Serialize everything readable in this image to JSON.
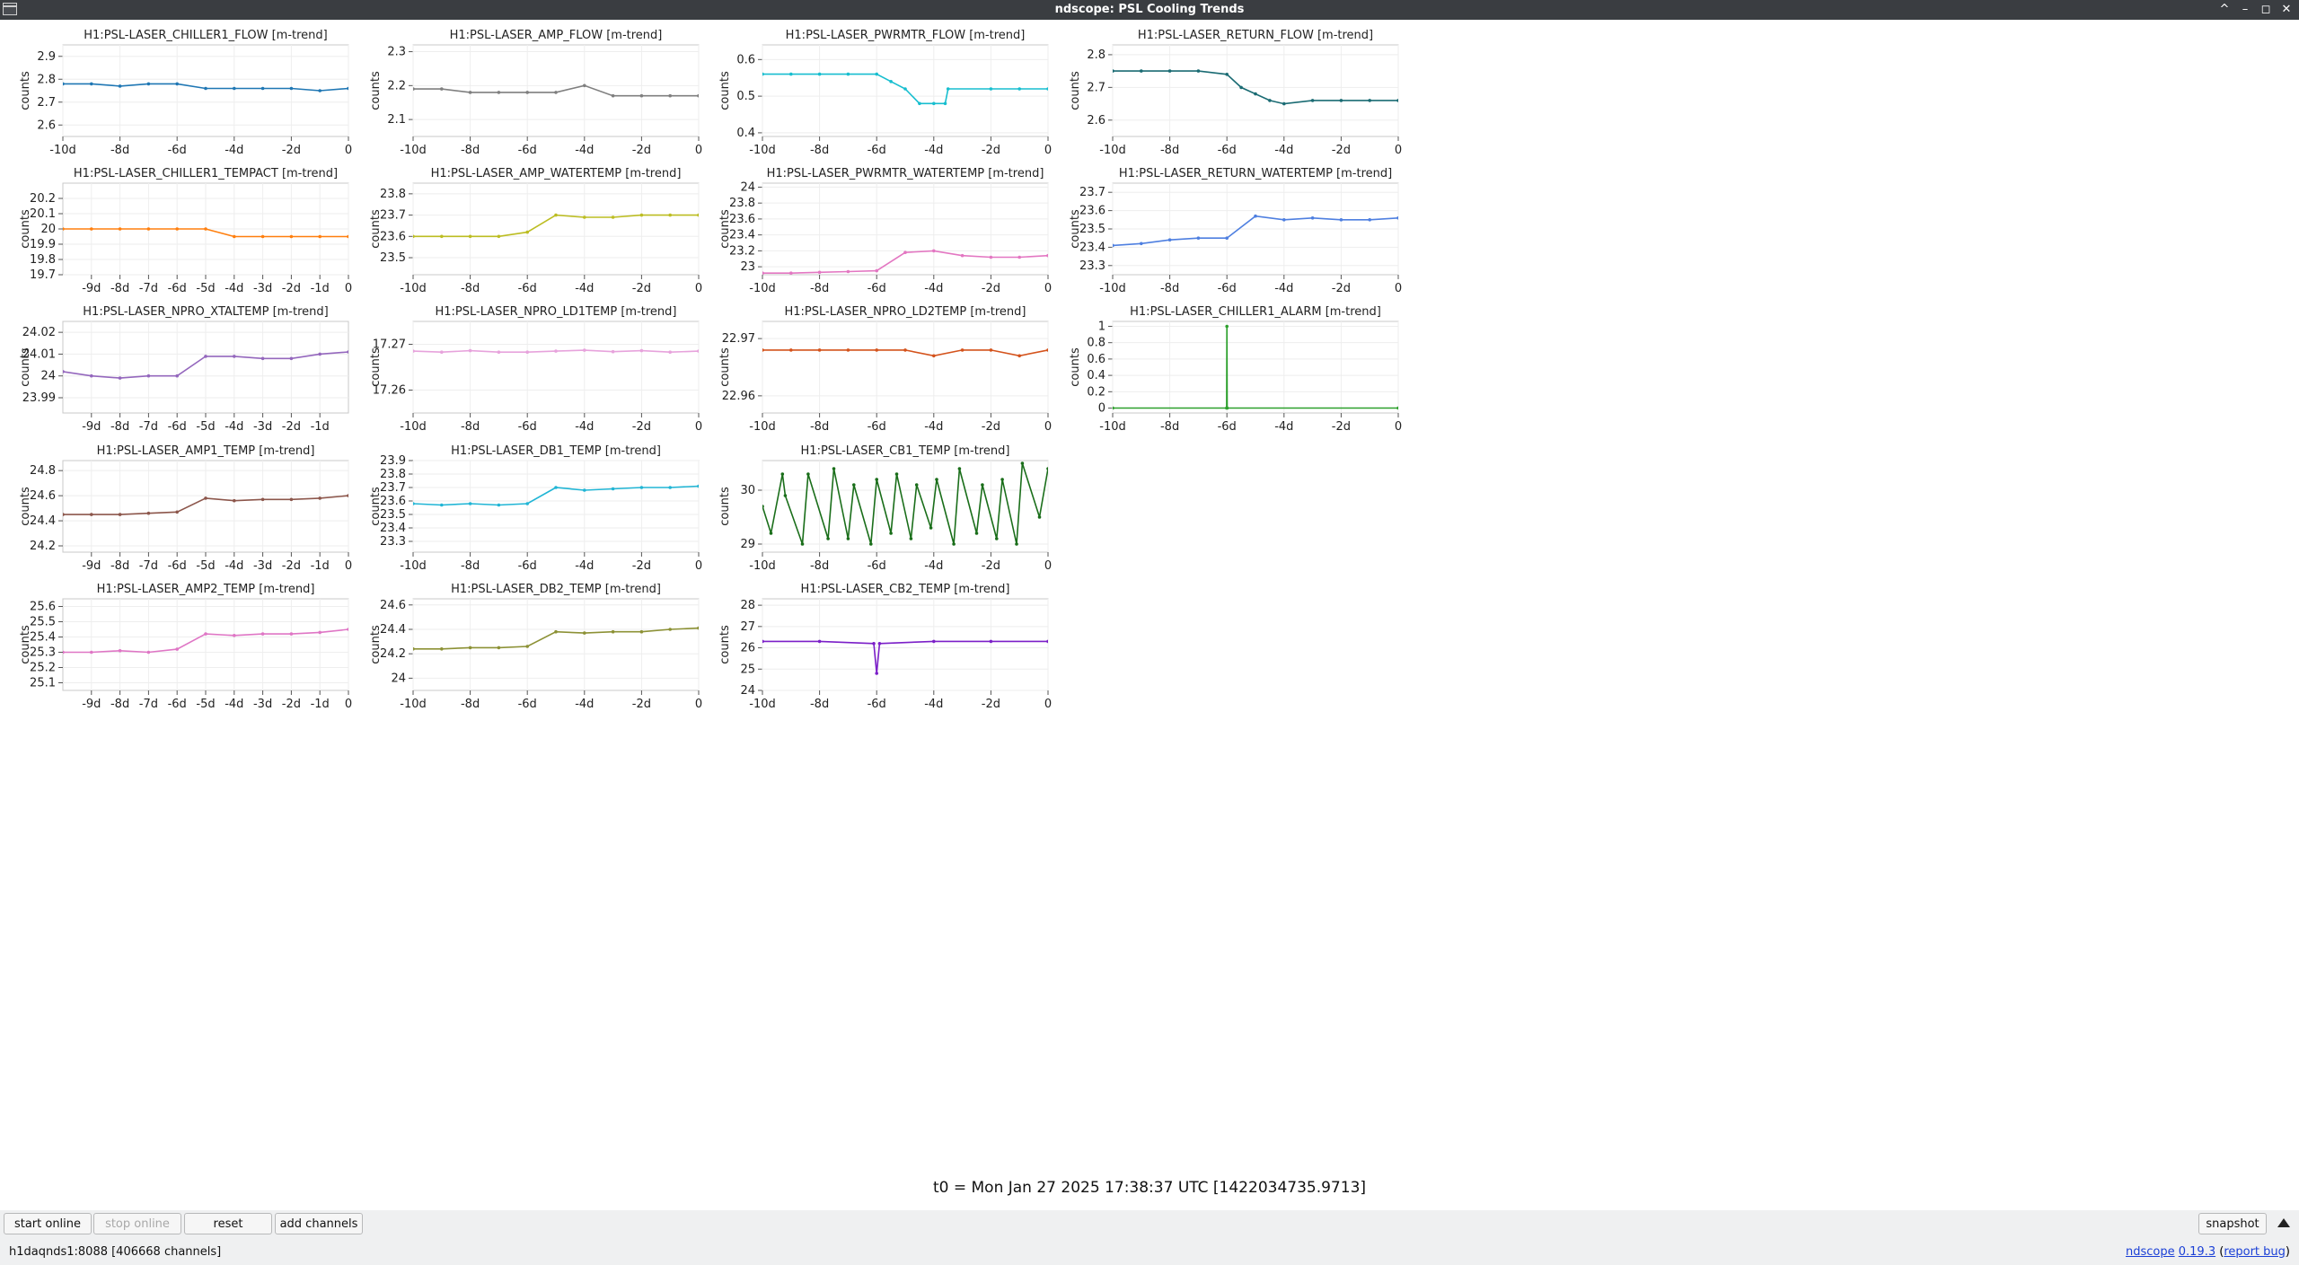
{
  "window": {
    "title": "ndscope: PSL Cooling Trends",
    "buttons": [
      "^",
      "–",
      "◻",
      "✕"
    ]
  },
  "footer": {
    "t0": "t0 = Mon Jan 27 2025 17:38:37 UTC [1422034735.9713]",
    "buttons": {
      "start_online": "start online",
      "stop_online": "stop online",
      "reset": "reset",
      "add_channels": "add channels",
      "snapshot": "snapshot"
    },
    "server": "h1daqnds1:8088  [406668 channels]",
    "version_link": "ndscope",
    "version": "0.19.3",
    "report_open": "(",
    "report_bug": "report bug",
    "report_close": ")"
  },
  "chart_data": [
    {
      "type": "line",
      "title": "H1:PSL-LASER_CHILLER1_FLOW [m-trend]",
      "ylabel": "counts",
      "color": "#1f77b4",
      "xlim": [
        -10,
        0
      ],
      "ylim": [
        2.55,
        2.95
      ],
      "yticks": [
        2.6,
        2.7,
        2.8,
        2.9
      ],
      "xticks": [
        "-10d",
        "-8d",
        "-6d",
        "-4d",
        "-2d",
        "0"
      ],
      "series": [
        {
          "x": [
            -10,
            -9,
            -8,
            -7,
            -6,
            -5,
            -4,
            -3,
            -2,
            -1,
            0
          ],
          "values": [
            2.78,
            2.78,
            2.77,
            2.78,
            2.78,
            2.76,
            2.76,
            2.76,
            2.76,
            2.75,
            2.76
          ]
        }
      ]
    },
    {
      "type": "line",
      "title": "H1:PSL-LASER_AMP_FLOW [m-trend]",
      "ylabel": "counts",
      "color": "#7f7f7f",
      "xlim": [
        -10,
        0
      ],
      "ylim": [
        2.05,
        2.32
      ],
      "yticks": [
        2.1,
        2.2,
        2.3
      ],
      "xticks": [
        "-10d",
        "-8d",
        "-6d",
        "-4d",
        "-2d",
        "0"
      ],
      "series": [
        {
          "x": [
            -10,
            -9,
            -8,
            -7,
            -6,
            -5,
            -4,
            -3,
            -2,
            -1,
            0
          ],
          "values": [
            2.19,
            2.19,
            2.18,
            2.18,
            2.18,
            2.18,
            2.2,
            2.17,
            2.17,
            2.17,
            2.17
          ]
        }
      ]
    },
    {
      "type": "line",
      "title": "H1:PSL-LASER_PWRMTR_FLOW [m-trend]",
      "ylabel": "counts",
      "color": "#17becf",
      "xlim": [
        -10,
        0
      ],
      "ylim": [
        0.39,
        0.64
      ],
      "yticks": [
        0.4,
        0.5,
        0.6
      ],
      "xticks": [
        "-10d",
        "-8d",
        "-6d",
        "-4d",
        "-2d",
        "0"
      ],
      "series": [
        {
          "x": [
            -10,
            -9,
            -8,
            -7,
            -6,
            -5.5,
            -5,
            -4.5,
            -4,
            -3.6,
            -3.5,
            -2,
            -1,
            0
          ],
          "values": [
            0.56,
            0.56,
            0.56,
            0.56,
            0.56,
            0.54,
            0.52,
            0.48,
            0.48,
            0.48,
            0.52,
            0.52,
            0.52,
            0.52
          ]
        }
      ]
    },
    {
      "type": "line",
      "title": "H1:PSL-LASER_RETURN_FLOW [m-trend]",
      "ylabel": "counts",
      "color": "#1a6b73",
      "xlim": [
        -10,
        0
      ],
      "ylim": [
        2.55,
        2.83
      ],
      "yticks": [
        2.6,
        2.7,
        2.8
      ],
      "xticks": [
        "-10d",
        "-8d",
        "-6d",
        "-4d",
        "-2d",
        "0"
      ],
      "series": [
        {
          "x": [
            -10,
            -9,
            -8,
            -7,
            -6,
            -5.5,
            -5,
            -4.5,
            -4,
            -3,
            -2,
            -1,
            0
          ],
          "values": [
            2.75,
            2.75,
            2.75,
            2.75,
            2.74,
            2.7,
            2.68,
            2.66,
            2.65,
            2.66,
            2.66,
            2.66,
            2.66
          ]
        }
      ]
    },
    {
      "type": "line",
      "title": "H1:PSL-LASER_CHILLER1_TEMPACT [m-trend]",
      "ylabel": "counts",
      "color": "#ff7f0e",
      "xlim": [
        -10,
        0
      ],
      "ylim": [
        19.7,
        20.3
      ],
      "yticks": [
        19.7,
        19.8,
        19.9,
        20,
        20.1,
        20.2
      ],
      "xticks": [
        "-9d",
        "-8d",
        "-7d",
        "-6d",
        "-5d",
        "-4d",
        "-3d",
        "-2d",
        "-1d",
        "0"
      ],
      "series": [
        {
          "x": [
            -10,
            -9,
            -8,
            -7,
            -6,
            -5,
            -4,
            -3,
            -2,
            -1,
            0
          ],
          "values": [
            20,
            20,
            20,
            20,
            20,
            20,
            19.95,
            19.95,
            19.95,
            19.95,
            19.95
          ]
        }
      ]
    },
    {
      "type": "line",
      "title": "H1:PSL-LASER_AMP_WATERTEMP [m-trend]",
      "ylabel": "counts",
      "color": "#bcbd22",
      "xlim": [
        -10,
        0
      ],
      "ylim": [
        23.42,
        23.85
      ],
      "yticks": [
        23.5,
        23.6,
        23.7,
        23.8
      ],
      "xticks": [
        "-10d",
        "-8d",
        "-6d",
        "-4d",
        "-2d",
        "0"
      ],
      "series": [
        {
          "x": [
            -10,
            -9,
            -8,
            -7,
            -6,
            -5,
            -4,
            -3,
            -2,
            -1,
            0
          ],
          "values": [
            23.6,
            23.6,
            23.6,
            23.6,
            23.62,
            23.7,
            23.69,
            23.69,
            23.7,
            23.7,
            23.7
          ]
        }
      ]
    },
    {
      "type": "line",
      "title": "H1:PSL-LASER_PWRMTR_WATERTEMP [m-trend]",
      "ylabel": "counts",
      "color": "#e377c2",
      "xlim": [
        -10,
        0
      ],
      "ylim": [
        22.9,
        24.05
      ],
      "yticks": [
        23,
        23.2,
        23.4,
        23.6,
        23.8,
        24
      ],
      "xticks": [
        "-10d",
        "-8d",
        "-6d",
        "-4d",
        "-2d",
        "0"
      ],
      "series": [
        {
          "x": [
            -10,
            -9,
            -8,
            -7,
            -6,
            -5,
            -4,
            -3,
            -2,
            -1,
            0
          ],
          "values": [
            22.92,
            22.92,
            22.93,
            22.94,
            22.95,
            23.18,
            23.2,
            23.14,
            23.12,
            23.12,
            23.14
          ]
        }
      ]
    },
    {
      "type": "line",
      "title": "H1:PSL-LASER_RETURN_WATERTEMP [m-trend]",
      "ylabel": "counts",
      "color": "#4e7fe0",
      "xlim": [
        -10,
        0
      ],
      "ylim": [
        23.25,
        23.75
      ],
      "yticks": [
        23.3,
        23.4,
        23.5,
        23.6,
        23.7
      ],
      "xticks": [
        "-10d",
        "-8d",
        "-6d",
        "-4d",
        "-2d",
        "0"
      ],
      "series": [
        {
          "x": [
            -10,
            -9,
            -8,
            -7,
            -6,
            -5,
            -4,
            -3,
            -2,
            -1,
            0
          ],
          "values": [
            23.41,
            23.42,
            23.44,
            23.45,
            23.45,
            23.57,
            23.55,
            23.56,
            23.55,
            23.55,
            23.56
          ]
        }
      ]
    },
    {
      "type": "line",
      "title": "H1:PSL-LASER_NPRO_XTALTEMP [m-trend]",
      "ylabel": "counts",
      "color": "#9467bd",
      "xlim": [
        -10,
        0
      ],
      "ylim": [
        23.983,
        24.025
      ],
      "yticks": [
        23.99,
        24.0,
        24.01,
        24.02
      ],
      "xticks": [
        "-9d",
        "-8d",
        "-7d",
        "-6d",
        "-5d",
        "-4d",
        "-3d",
        "-2d",
        "-1d"
      ],
      "series": [
        {
          "x": [
            -10,
            -9,
            -8,
            -7,
            -6,
            -5,
            -4,
            -3,
            -2,
            -1,
            0
          ],
          "values": [
            24.002,
            24.0,
            23.999,
            24.0,
            24.0,
            24.009,
            24.009,
            24.008,
            24.008,
            24.01,
            24.011
          ]
        }
      ]
    },
    {
      "type": "line",
      "title": "H1:PSL-LASER_NPRO_LD1TEMP [m-trend]",
      "ylabel": "counts",
      "color": "#e7a3dc",
      "xlim": [
        -10,
        0
      ],
      "ylim": [
        17.255,
        17.275
      ],
      "yticks": [
        17.26,
        17.27
      ],
      "xticks": [
        "-10d",
        "-8d",
        "-6d",
        "-4d",
        "-2d",
        "0"
      ],
      "series": [
        {
          "x": [
            -10,
            -9,
            -8,
            -7,
            -6,
            -5,
            -4,
            -3,
            -2,
            -1,
            0
          ],
          "values": [
            17.2685,
            17.2683,
            17.2686,
            17.2683,
            17.2683,
            17.2685,
            17.2687,
            17.2684,
            17.2686,
            17.2683,
            17.2685
          ]
        }
      ]
    },
    {
      "type": "line",
      "title": "H1:PSL-LASER_NPRO_LD2TEMP [m-trend]",
      "ylabel": "counts",
      "color": "#d4531c",
      "xlim": [
        -10,
        0
      ],
      "ylim": [
        22.957,
        22.973
      ],
      "yticks": [
        22.96,
        22.97
      ],
      "xticks": [
        "-10d",
        "-8d",
        "-6d",
        "-4d",
        "-2d",
        "0"
      ],
      "series": [
        {
          "x": [
            -10,
            -9,
            -8,
            -7,
            -6,
            -5,
            -4,
            -3,
            -2,
            -1,
            0
          ],
          "values": [
            22.968,
            22.968,
            22.968,
            22.968,
            22.968,
            22.968,
            22.967,
            22.968,
            22.968,
            22.967,
            22.968
          ]
        }
      ]
    },
    {
      "type": "line",
      "title": "H1:PSL-LASER_CHILLER1_ALARM [m-trend]",
      "ylabel": "counts",
      "color": "#2ca02c",
      "xlim": [
        -10,
        0
      ],
      "ylim": [
        -0.06,
        1.06
      ],
      "yticks": [
        0,
        0.2,
        0.4,
        0.6,
        0.8,
        1
      ],
      "xticks": [
        "-10d",
        "-8d",
        "-6d",
        "-4d",
        "-2d",
        "0"
      ],
      "series": [
        {
          "x": [
            -10,
            -6.01,
            -6,
            -5.99,
            0
          ],
          "values": [
            0,
            0,
            1,
            0,
            0
          ]
        }
      ]
    },
    {
      "type": "line",
      "title": "H1:PSL-LASER_AMP1_TEMP [m-trend]",
      "ylabel": "counts",
      "color": "#8c564b",
      "xlim": [
        -10,
        0
      ],
      "ylim": [
        24.15,
        24.88
      ],
      "yticks": [
        24.2,
        24.4,
        24.6,
        24.8
      ],
      "xticks": [
        "-9d",
        "-8d",
        "-7d",
        "-6d",
        "-5d",
        "-4d",
        "-3d",
        "-2d",
        "-1d",
        "0"
      ],
      "series": [
        {
          "x": [
            -10,
            -9,
            -8,
            -7,
            -6,
            -5,
            -4,
            -3,
            -2,
            -1,
            0
          ],
          "values": [
            24.45,
            24.45,
            24.45,
            24.46,
            24.47,
            24.58,
            24.56,
            24.57,
            24.57,
            24.58,
            24.6
          ]
        }
      ]
    },
    {
      "type": "line",
      "title": "H1:PSL-LASER_DB1_TEMP [m-trend]",
      "ylabel": "counts",
      "color": "#20b5d5",
      "xlim": [
        -10,
        0
      ],
      "ylim": [
        23.22,
        23.9
      ],
      "yticks": [
        23.3,
        23.4,
        23.5,
        23.6,
        23.7,
        23.8,
        23.9
      ],
      "xticks": [
        "-10d",
        "-8d",
        "-6d",
        "-4d",
        "-2d",
        "0"
      ],
      "series": [
        {
          "x": [
            -10,
            -9,
            -8,
            -7,
            -6,
            -5,
            -4,
            -3,
            -2,
            -1,
            0
          ],
          "values": [
            23.58,
            23.57,
            23.58,
            23.57,
            23.58,
            23.7,
            23.68,
            23.69,
            23.7,
            23.7,
            23.71
          ]
        }
      ]
    },
    {
      "type": "line",
      "title": "H1:PSL-LASER_CB1_TEMP [m-trend]",
      "ylabel": "counts",
      "color": "#1a6e1a",
      "xlim": [
        -10,
        0
      ],
      "ylim": [
        28.85,
        30.55
      ],
      "yticks": [
        29,
        30
      ],
      "xticks": [
        "-10d",
        "-8d",
        "-6d",
        "-4d",
        "-2d",
        "0"
      ],
      "series": [
        {
          "x": [
            -10,
            -9.7,
            -9.3,
            -9.2,
            -8.6,
            -8.4,
            -7.7,
            -7.5,
            -7.0,
            -6.8,
            -6.2,
            -6.0,
            -5.5,
            -5.3,
            -4.8,
            -4.6,
            -4.1,
            -3.9,
            -3.3,
            -3.1,
            -2.5,
            -2.3,
            -1.8,
            -1.6,
            -1.1,
            -0.9,
            -0.3,
            0
          ],
          "values": [
            29.7,
            29.2,
            30.3,
            29.9,
            29.0,
            30.3,
            29.1,
            30.4,
            29.1,
            30.1,
            29.0,
            30.2,
            29.2,
            30.3,
            29.1,
            30.1,
            29.3,
            30.2,
            29.0,
            30.4,
            29.2,
            30.1,
            29.1,
            30.2,
            29.0,
            30.5,
            29.5,
            30.4
          ]
        }
      ]
    },
    {
      "type": "line",
      "title": "H1:PSL-LASER_AMP2_TEMP [m-trend]",
      "ylabel": "counts",
      "color": "#df76c5",
      "xlim": [
        -10,
        0
      ],
      "ylim": [
        25.05,
        25.65
      ],
      "yticks": [
        25.1,
        25.2,
        25.3,
        25.4,
        25.5,
        25.6
      ],
      "xticks": [
        "-9d",
        "-8d",
        "-7d",
        "-6d",
        "-5d",
        "-4d",
        "-3d",
        "-2d",
        "-1d",
        "0"
      ],
      "series": [
        {
          "x": [
            -10,
            -9,
            -8,
            -7,
            -6,
            -5,
            -4,
            -3,
            -2,
            -1,
            0
          ],
          "values": [
            25.3,
            25.3,
            25.31,
            25.3,
            25.32,
            25.42,
            25.41,
            25.42,
            25.42,
            25.43,
            25.45
          ]
        }
      ]
    },
    {
      "type": "line",
      "title": "H1:PSL-LASER_DB2_TEMP [m-trend]",
      "ylabel": "counts",
      "color": "#8c9135",
      "xlim": [
        -10,
        0
      ],
      "ylim": [
        23.9,
        24.65
      ],
      "yticks": [
        24,
        24.2,
        24.4,
        24.6
      ],
      "xticks": [
        "-10d",
        "-8d",
        "-6d",
        "-4d",
        "-2d",
        "0"
      ],
      "series": [
        {
          "x": [
            -10,
            -9,
            -8,
            -7,
            -6,
            -5,
            -4,
            -3,
            -2,
            -1,
            0
          ],
          "values": [
            24.24,
            24.24,
            24.25,
            24.25,
            24.26,
            24.38,
            24.37,
            24.38,
            24.38,
            24.4,
            24.41
          ]
        }
      ]
    },
    {
      "type": "line",
      "title": "H1:PSL-LASER_CB2_TEMP [m-trend]",
      "ylabel": "counts",
      "color": "#7b1fc8",
      "xlim": [
        -10,
        0
      ],
      "ylim": [
        24,
        28.3
      ],
      "yticks": [
        24,
        25,
        26,
        27,
        28
      ],
      "xticks": [
        "-10d",
        "-8d",
        "-6d",
        "-4d",
        "-2d",
        "0"
      ],
      "series": [
        {
          "x": [
            -10,
            -8,
            -6.1,
            -6,
            -5.9,
            -4,
            -2,
            0
          ],
          "values": [
            26.3,
            26.3,
            26.2,
            24.8,
            26.2,
            26.3,
            26.3,
            26.3
          ]
        }
      ]
    }
  ]
}
